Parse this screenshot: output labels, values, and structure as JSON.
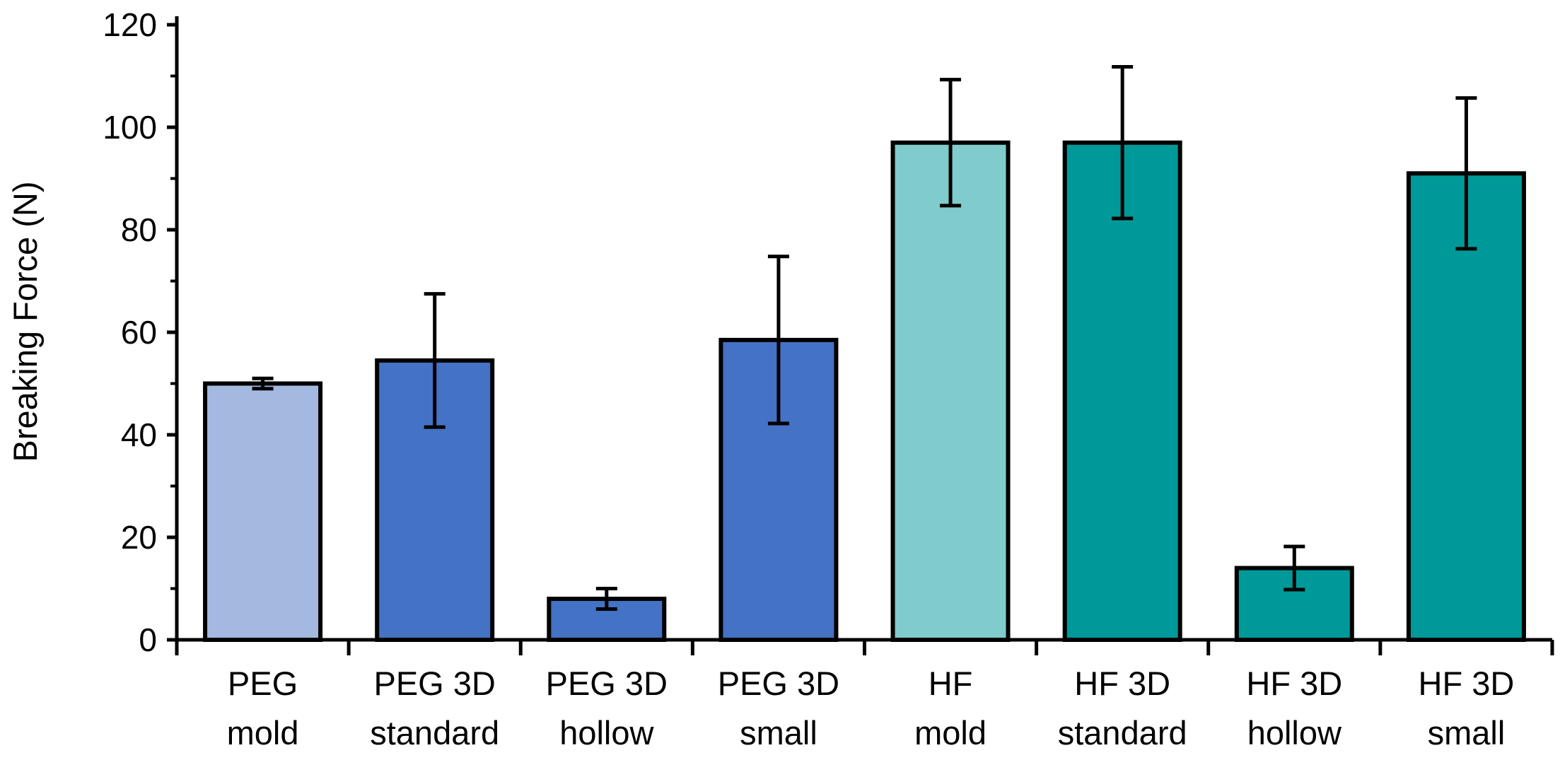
{
  "chart_data": {
    "type": "bar",
    "title": "",
    "xlabel": "",
    "ylabel": "Breaking Force (N)",
    "ylim": [
      0,
      120
    ],
    "yticks": [
      0,
      20,
      40,
      60,
      80,
      100,
      120
    ],
    "grid": false,
    "legend": "none",
    "categories": [
      [
        "PEG",
        "mold"
      ],
      [
        "PEG 3D",
        "standard"
      ],
      [
        "PEG 3D",
        "hollow"
      ],
      [
        "PEG 3D",
        "small"
      ],
      [
        "HF",
        "mold"
      ],
      [
        "HF 3D",
        "standard"
      ],
      [
        "HF 3D",
        "hollow"
      ],
      [
        "HF 3D",
        "small"
      ]
    ],
    "values": [
      50,
      54.5,
      8,
      58.5,
      97,
      97,
      14,
      91
    ],
    "errors": [
      1,
      13,
      2,
      16.3,
      12.3,
      14.8,
      4.2,
      14.7
    ],
    "bar_colors": [
      "#a4b9e0",
      "#4472c4",
      "#4472c4",
      "#4472c4",
      "#80cbcb",
      "#009999",
      "#009999",
      "#009999"
    ]
  }
}
